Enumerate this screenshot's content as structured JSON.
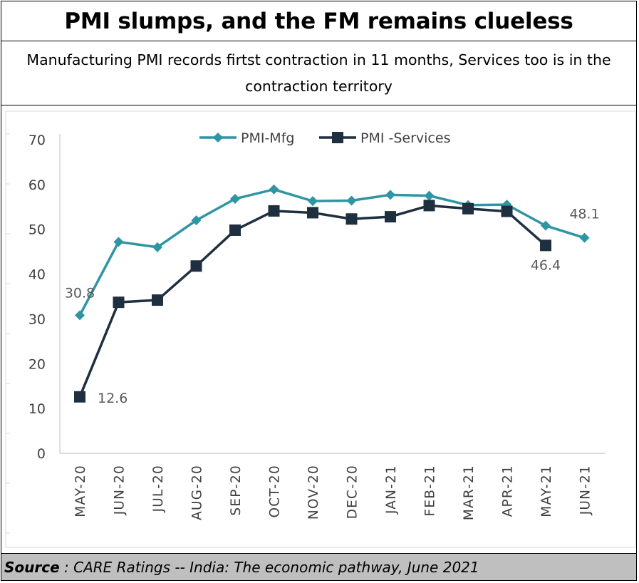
{
  "header": {
    "title": "PMI slumps, and the FM remains clueless",
    "subtitle": "Manufacturing PMI records firtst contraction in 11 months, Services too is in the contraction territory"
  },
  "footer": {
    "source_label": "Source",
    "source_text": " : CARE Ratings -- India: The economic pathway, June 2021"
  },
  "chart_data": {
    "type": "line",
    "title": "",
    "xlabel": "",
    "ylabel": "",
    "ylim": [
      0,
      70
    ],
    "yticks": [
      0,
      10,
      20,
      30,
      40,
      50,
      60,
      70
    ],
    "grid": false,
    "legend_position": "top",
    "categories": [
      "MAY-20",
      "JUN-20",
      "JUL-20",
      "AUG-20",
      "SEP-20",
      "OCT-20",
      "NOV-20",
      "DEC-20",
      "JAN-21",
      "FEB-21",
      "MAR-21",
      "APR-21",
      "MAY-21",
      "JUN-21"
    ],
    "series": [
      {
        "name": "PMI-Mfg",
        "color": "#2e95a3",
        "marker": "diamond",
        "values": [
          30.8,
          47.2,
          46.0,
          52.0,
          56.8,
          58.9,
          56.3,
          56.4,
          57.7,
          57.5,
          55.4,
          55.5,
          50.8,
          48.1
        ]
      },
      {
        "name": "PMI -Services",
        "color": "#1e2f3f",
        "marker": "square",
        "values": [
          12.6,
          33.7,
          34.2,
          41.8,
          49.8,
          54.1,
          53.7,
          52.3,
          52.8,
          55.3,
          54.6,
          54.0,
          46.4,
          null
        ]
      }
    ],
    "data_labels": [
      {
        "series": 0,
        "index": 0,
        "text": "30.8"
      },
      {
        "series": 1,
        "index": 0,
        "text": "12.6"
      },
      {
        "series": 1,
        "index": 12,
        "text": "46.4"
      },
      {
        "series": 0,
        "index": 13,
        "text": "48.1"
      }
    ]
  }
}
